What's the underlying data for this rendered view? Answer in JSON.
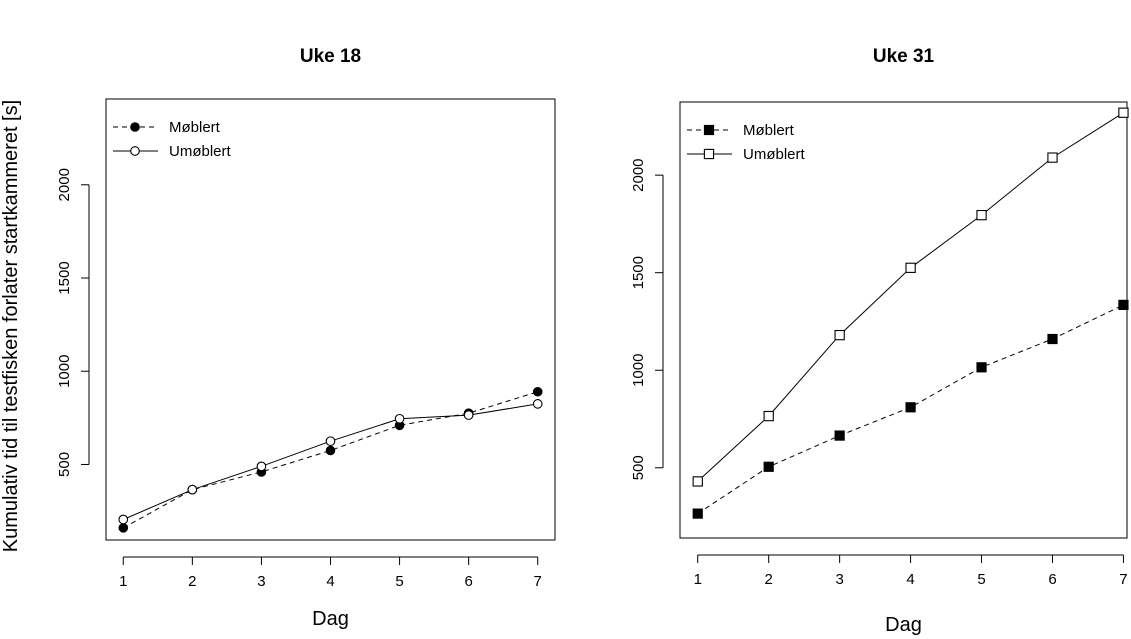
{
  "shared_ylabel": "Kumulativ tid til testfisken forlater startkammeret [s]",
  "chart_data": [
    {
      "type": "line",
      "title": "Uke 18",
      "xlabel": "Dag",
      "ylabel": "",
      "x": [
        1,
        2,
        3,
        4,
        5,
        6,
        7
      ],
      "xticks": [
        "1",
        "2",
        "3",
        "4",
        "5",
        "6",
        "7"
      ],
      "xlim": [
        0.75,
        7.25
      ],
      "ylim": [
        95,
        2460
      ],
      "yticks": [
        "500",
        "1000",
        "1500",
        "2000"
      ],
      "legend": "top-left",
      "series": [
        {
          "name": "Møblert",
          "values": [
            160,
            365,
            460,
            575,
            710,
            775,
            890
          ],
          "line": "dashed",
          "marker": "filled-circle"
        },
        {
          "name": "Umøblert",
          "values": [
            205,
            365,
            490,
            625,
            745,
            765,
            825
          ],
          "line": "solid",
          "marker": "open-circle"
        }
      ]
    },
    {
      "type": "line",
      "title": "Uke 31",
      "xlabel": "Dag",
      "ylabel": "",
      "x": [
        1,
        2,
        3,
        4,
        5,
        6,
        7
      ],
      "xticks": [
        "1",
        "2",
        "3",
        "4",
        "5",
        "6",
        "7"
      ],
      "xlim": [
        0.75,
        7.05
      ],
      "ylim": [
        140,
        2375
      ],
      "yticks": [
        "500",
        "1000",
        "1500",
        "2000"
      ],
      "legend": "top-left",
      "series": [
        {
          "name": "Møblert",
          "values": [
            265,
            505,
            665,
            810,
            1015,
            1160,
            1335
          ],
          "line": "dashed",
          "marker": "filled-square"
        },
        {
          "name": "Umøblert",
          "values": [
            430,
            765,
            1180,
            1525,
            1795,
            2090,
            2320
          ],
          "line": "solid",
          "marker": "open-square"
        }
      ]
    }
  ]
}
